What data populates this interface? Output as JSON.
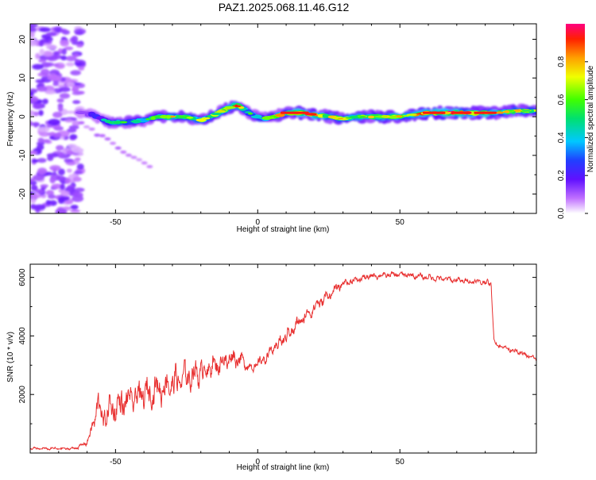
{
  "figure_title": "PAZ1.2025.068.11.46.G12",
  "chart_data": [
    {
      "type": "heatmap",
      "xlabel": "Height of straight line (km)",
      "ylabel": "Frequency (Hz)",
      "xlim": [
        -80,
        98
      ],
      "ylim": [
        -25,
        24
      ],
      "x_ticks": [
        -50,
        0,
        50
      ],
      "y_ticks": [
        -20,
        -10,
        0,
        10,
        20
      ],
      "colorbar": {
        "label": "Normalized spectral amplitude",
        "range": [
          0,
          1
        ],
        "ticks": [
          "0.0",
          "0.2",
          "0.4",
          "0.6",
          "0.8"
        ],
        "colors": [
          "#ffffff",
          "#a040ff",
          "#2030ff",
          "#00c8ff",
          "#00e080",
          "#40ff00",
          "#f0ff00",
          "#ffa000",
          "#ff2000",
          "#ff0080"
        ]
      },
      "ridge": {
        "x": [
          -63,
          -58,
          -52,
          -46,
          -40,
          -35,
          -30,
          -25,
          -20,
          -15,
          -11,
          -8,
          -5,
          -2,
          2,
          6,
          10,
          15,
          20,
          25,
          30,
          35,
          40,
          45,
          50,
          55,
          60,
          65,
          70,
          75,
          80,
          85,
          90,
          98
        ],
        "y": [
          1,
          0.5,
          -1.5,
          -1.5,
          -1,
          0,
          0,
          0,
          -1,
          0.5,
          2,
          3,
          2,
          0.5,
          -0.5,
          0,
          1,
          1,
          0.5,
          0,
          -0.5,
          0,
          0,
          0,
          0,
          0.5,
          1,
          1,
          1,
          1,
          1,
          1,
          1.5,
          1.5
        ],
        "amp": [
          0.2,
          0.3,
          0.45,
          0.5,
          0.55,
          0.5,
          0.7,
          0.6,
          0.65,
          0.6,
          0.7,
          0.85,
          0.6,
          0.55,
          0.5,
          0.65,
          0.8,
          0.9,
          0.85,
          0.7,
          0.75,
          0.7,
          0.75,
          0.7,
          0.7,
          0.75,
          0.85,
          0.9,
          0.9,
          0.9,
          0.85,
          0.75,
          0.7,
          0.6
        ]
      },
      "noise_band_x": [
        -80,
        -62
      ],
      "faint_branch": {
        "x": [
          -62,
          -38
        ],
        "y": [
          -2,
          -13
        ]
      }
    },
    {
      "type": "line",
      "xlabel": "Height of straight line (km)",
      "ylabel": "SNR (10 * v/v)",
      "xlim": [
        -80,
        98
      ],
      "ylim": [
        0,
        6450
      ],
      "x_ticks": [
        -50,
        0,
        50
      ],
      "y_ticks": [
        2000,
        4000,
        6000
      ],
      "color": "#e83030",
      "envelope": {
        "x": [
          -80,
          -65,
          -62,
          -60,
          -58,
          -56,
          -55,
          -52,
          -45,
          -35,
          -25,
          -15,
          -8,
          -2,
          2,
          10,
          20,
          30,
          40,
          50,
          60,
          70,
          78,
          82,
          83,
          84,
          90,
          98
        ],
        "mean": [
          150,
          150,
          250,
          400,
          900,
          1900,
          1100,
          1500,
          1800,
          2200,
          2600,
          3000,
          3300,
          2900,
          3200,
          4000,
          5000,
          5800,
          6050,
          6100,
          6000,
          5900,
          5850,
          5800,
          3800,
          3700,
          3500,
          3200
        ],
        "spread": [
          80,
          80,
          120,
          200,
          500,
          900,
          700,
          900,
          950,
          950,
          900,
          700,
          600,
          300,
          350,
          450,
          400,
          250,
          180,
          180,
          180,
          180,
          180,
          180,
          150,
          150,
          150,
          150
        ]
      }
    }
  ]
}
